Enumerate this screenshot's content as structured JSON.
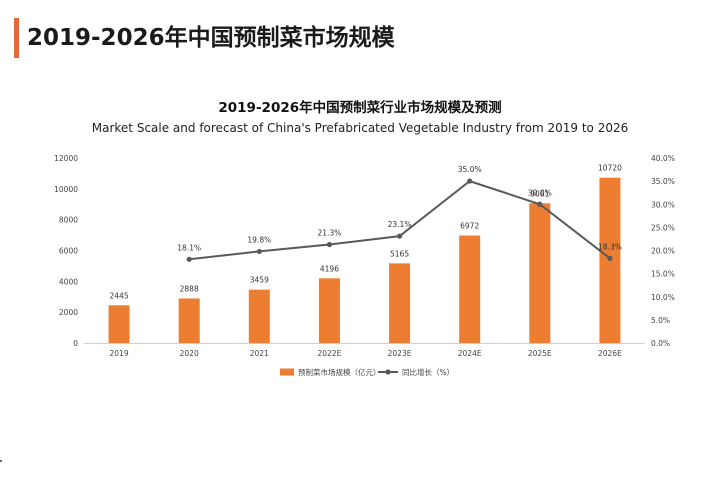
{
  "page": {
    "title": "2019-2026年中国预制菜市场规模"
  },
  "chart_data": {
    "type": "bar",
    "title": "2019-2026年中国预制菜行业市场规模及预测",
    "subtitle": "Market Scale and forecast of China's Prefabricated Vegetable Industry from 2019 to 2026",
    "categories": [
      "2019",
      "2020",
      "2021",
      "2022E",
      "2023E",
      "2024E",
      "2025E",
      "2026E"
    ],
    "series": [
      {
        "name": "预制菜市场规模（亿元）",
        "type": "bar",
        "axis": "left",
        "color": "#ed7d31",
        "values": [
          2445,
          2888,
          3459,
          4196,
          5165,
          6972,
          9061,
          10720
        ],
        "labels": [
          "2445",
          "2888",
          "3459",
          "4196",
          "5165",
          "6972",
          "9061",
          "10720"
        ]
      },
      {
        "name": "同比增长（%）",
        "type": "line",
        "axis": "right",
        "color": "#595959",
        "values": [
          null,
          18.1,
          19.8,
          21.3,
          23.1,
          35.0,
          30.0,
          18.3
        ],
        "labels": [
          "",
          "18.1%",
          "19.8%",
          "21.3%",
          "23.1%",
          "35.0%",
          "30.0%",
          "18.3%"
        ]
      }
    ],
    "y_left": {
      "ylim": [
        0,
        12000
      ],
      "ticks": [
        0,
        2000,
        4000,
        6000,
        8000,
        10000,
        12000
      ],
      "tick_labels": [
        "0",
        "2000",
        "4000",
        "6000",
        "8000",
        "10000",
        "12000"
      ]
    },
    "y_right": {
      "ylim": [
        0,
        40
      ],
      "ticks": [
        0,
        5,
        10,
        15,
        20,
        25,
        30,
        35,
        40
      ],
      "tick_labels": [
        "0.0%",
        "5.0%",
        "10.0%",
        "15.0%",
        "20.0%",
        "25.0%",
        "30.0%",
        "35.0%",
        "40.0%"
      ]
    },
    "grid": false,
    "legend": "bottom-center"
  }
}
